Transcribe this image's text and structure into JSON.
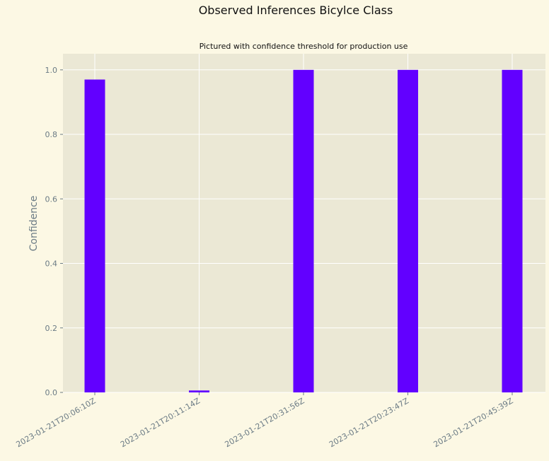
{
  "chart_data": {
    "type": "bar",
    "title": "Observed Inferences Bicylce Class",
    "subtitle": "Pictured with confidence threshold for production use",
    "xlabel": "",
    "ylabel": "Confidence",
    "categories": [
      "2023-01-21T20:06:10Z",
      "2023-01-21T20:11:14Z",
      "2023-01-21T20:31:56Z",
      "2023-01-21T20:23:47Z",
      "2023-01-21T20:45:39Z"
    ],
    "values": [
      0.97,
      0.006,
      1.0,
      1.0,
      1.0
    ],
    "ylim": [
      0,
      1.05
    ],
    "yticks": [
      "0.0",
      "0.2",
      "0.4",
      "0.6",
      "0.8",
      "1.0"
    ],
    "grid": true,
    "legend": "none",
    "colors": {
      "bar": "#6200ff",
      "plot_background": "#ebe8d5",
      "figure_background": "#fcf8e4",
      "grid": "#ffffff",
      "tick_text": "#6b7b85"
    }
  }
}
